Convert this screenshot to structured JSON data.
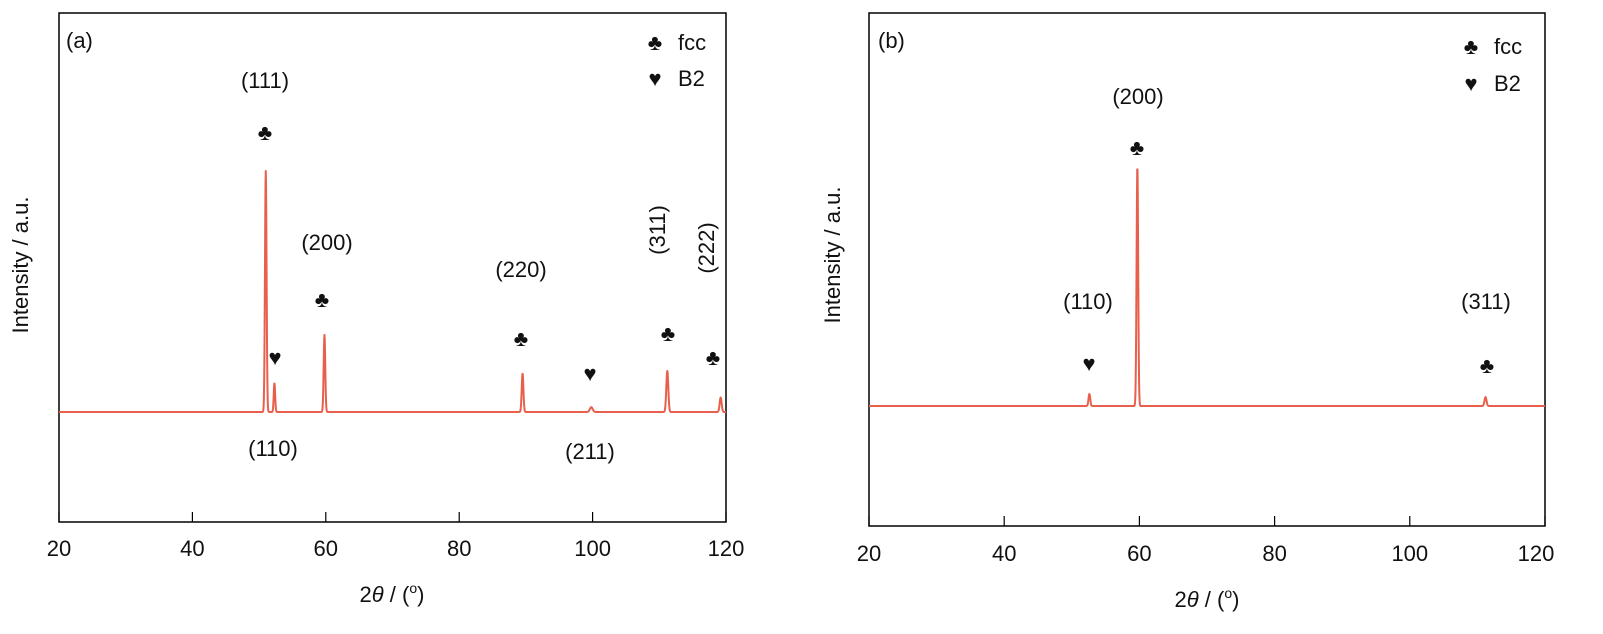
{
  "chart_data": [
    {
      "type": "line",
      "panel_label": "(a)",
      "xlabel_prefix": "2",
      "xlabel_theta": "θ",
      "xlabel_suffix": " / (",
      "xlabel_degree": "o",
      "xlabel_close": ")",
      "ylabel": "Intensity / a.u.",
      "xlim": [
        20,
        120
      ],
      "x_ticks": [
        20,
        40,
        60,
        80,
        100,
        120
      ],
      "y_ticks_shown": false,
      "grid": false,
      "legend_position": "top-right",
      "legend": [
        {
          "symbol": "♣",
          "label": "fcc"
        },
        {
          "symbol": "♥",
          "label": "B2"
        }
      ],
      "series": [
        {
          "color": "#e8604c",
          "baseline": 0.0,
          "peaks": [
            {
              "x": 51.0,
              "height": 1.0,
              "width": 0.28
            },
            {
              "x": 52.3,
              "height": 0.12,
              "width": 0.25
            },
            {
              "x": 59.8,
              "height": 0.32,
              "width": 0.28
            },
            {
              "x": 89.5,
              "height": 0.16,
              "width": 0.3
            },
            {
              "x": 99.8,
              "height": 0.02,
              "width": 0.5
            },
            {
              "x": 111.2,
              "height": 0.17,
              "width": 0.35
            },
            {
              "x": 119.2,
              "height": 0.06,
              "width": 0.35
            }
          ]
        }
      ],
      "annotations": [
        {
          "text": "(111)",
          "symbol": "♣",
          "phase": "fcc",
          "x": 51.0
        },
        {
          "text": "(110)",
          "symbol": "♥",
          "phase": "B2",
          "x": 52.3
        },
        {
          "text": "(200)",
          "symbol": "♣",
          "phase": "fcc",
          "x": 59.8
        },
        {
          "text": "(220)",
          "symbol": "♣",
          "phase": "fcc",
          "x": 89.5
        },
        {
          "text": "(211)",
          "symbol": "♥",
          "phase": "B2",
          "x": 99.8
        },
        {
          "text": "(311)",
          "symbol": "♣",
          "phase": "fcc",
          "x": 111.2
        },
        {
          "text": "(222)",
          "symbol": "♣",
          "phase": "fcc",
          "x": 118.5
        }
      ]
    },
    {
      "type": "line",
      "panel_label": "(b)",
      "xlabel_prefix": "2",
      "xlabel_theta": "θ",
      "xlabel_suffix": " / (",
      "xlabel_degree": "o",
      "xlabel_close": ")",
      "ylabel": "Intensity / a.u.",
      "xlim": [
        20,
        120
      ],
      "x_ticks": [
        20,
        40,
        60,
        80,
        100,
        120
      ],
      "y_ticks_shown": false,
      "grid": false,
      "legend_position": "top-right",
      "legend": [
        {
          "symbol": "♣",
          "label": "fcc"
        },
        {
          "symbol": "♥",
          "label": "B2"
        }
      ],
      "series": [
        {
          "color": "#e8604c",
          "baseline": 0.0,
          "peaks": [
            {
              "x": 52.6,
              "height": 0.05,
              "width": 0.3
            },
            {
              "x": 59.7,
              "height": 1.0,
              "width": 0.28
            },
            {
              "x": 111.2,
              "height": 0.037,
              "width": 0.35
            }
          ]
        }
      ],
      "annotations": [
        {
          "text": "(110)",
          "symbol": "♥",
          "phase": "B2",
          "x": 52.6
        },
        {
          "text": "(200)",
          "symbol": "♣",
          "phase": "fcc",
          "x": 59.7
        },
        {
          "text": "(311)",
          "symbol": "♣",
          "phase": "fcc",
          "x": 111.2
        }
      ]
    }
  ]
}
